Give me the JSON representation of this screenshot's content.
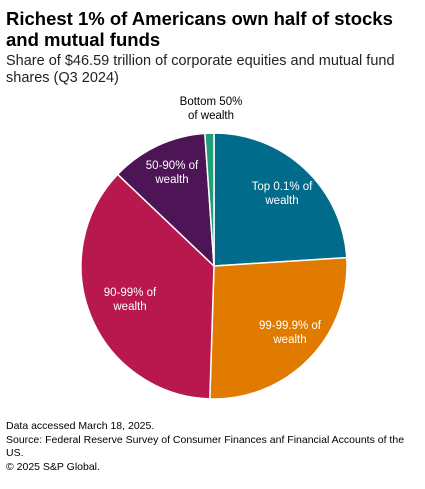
{
  "title": "Richest 1% of Americans own half of stocks and mutual funds",
  "subtitle": "Share of $46.59 trillion of corporate equities and mutual fund shares (Q3 2024)",
  "chart_data": {
    "type": "pie",
    "start_angle_deg": 0,
    "direction": "clockwise",
    "slices": [
      {
        "label": [
          "Top 0.1% of",
          "wealth"
        ],
        "value": 24.0,
        "color": "#006b8a",
        "label_color": "#ffffff"
      },
      {
        "label": [
          "99-99.9% of",
          "wealth"
        ],
        "value": 26.5,
        "color": "#e07b00",
        "label_color": "#ffffff"
      },
      {
        "label": [
          "90-99% of",
          "wealth"
        ],
        "value": 36.6,
        "color": "#b8184e",
        "label_color": "#ffffff"
      },
      {
        "label": [
          "50-90% of",
          "wealth"
        ],
        "value": 11.8,
        "color": "#4e1556",
        "label_color": "#ffffff"
      },
      {
        "label": [
          "Bottom 50%",
          "of wealth"
        ],
        "value": 1.1,
        "color": "#1f9e7a",
        "label_color": "#000000"
      }
    ]
  },
  "footer": {
    "accessed": "Data accessed March 18, 2025.",
    "source": "Source: Federal Reserve Survey of Consumer Finances anf Financial Accounts of the US.",
    "copyright": "© 2025 S&P Global."
  }
}
